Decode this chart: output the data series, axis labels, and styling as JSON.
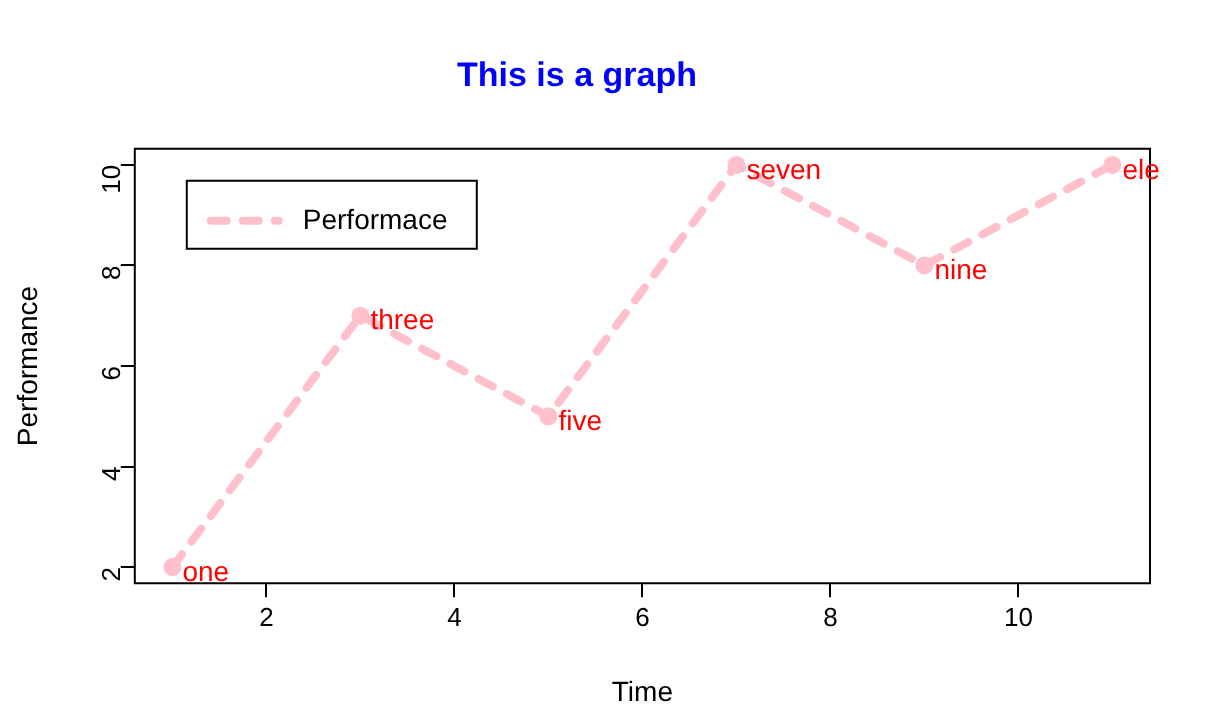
{
  "chart_data": {
    "type": "line",
    "title": "This is a graph",
    "xlabel": "Time",
    "ylabel": "Performance",
    "x": [
      1,
      3,
      5,
      7,
      9,
      11
    ],
    "series": [
      {
        "name": "Performace",
        "color": "#ffc0cb",
        "values": [
          2,
          7,
          5,
          10,
          8,
          10
        ]
      }
    ],
    "xlim": [
      0.6,
      11.4
    ],
    "xticks": [
      2,
      4,
      6,
      8,
      10
    ],
    "ylim": [
      1.68,
      10.32
    ],
    "yticks": [
      2,
      4,
      6,
      8,
      10
    ],
    "grid": false,
    "legend": "top left",
    "marker": "circle",
    "line_style": "dashed",
    "annotations": [
      {
        "text": "one",
        "x": 1,
        "y": 2
      },
      {
        "text": "three",
        "x": 3,
        "y": 7
      },
      {
        "text": "five",
        "x": 5,
        "y": 5
      },
      {
        "text": "seven",
        "x": 7,
        "y": 10
      },
      {
        "text": "nine",
        "x": 9,
        "y": 8
      },
      {
        "text": "ele",
        "x": 11,
        "y": 10
      }
    ]
  }
}
